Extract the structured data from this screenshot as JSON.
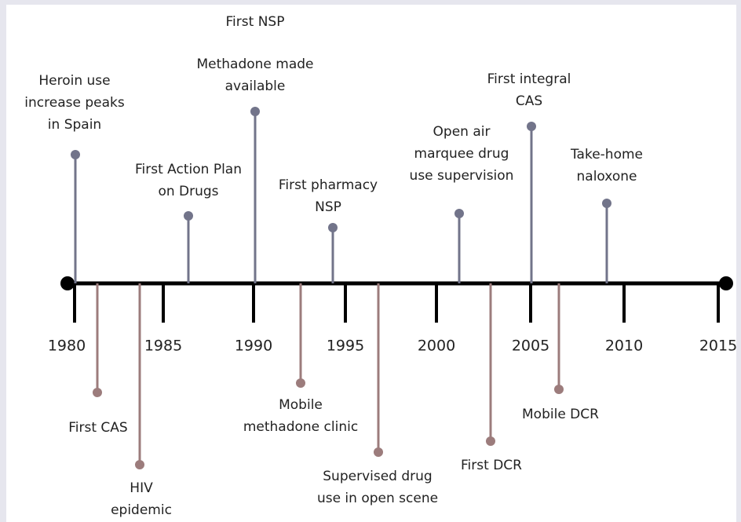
{
  "timeline": {
    "years": [
      "1980",
      "1985",
      "1990",
      "1995",
      "2000",
      "2005",
      "2010",
      "2015"
    ],
    "above": [
      {
        "label": [
          "Heroin use",
          "increase peaks",
          "in Spain"
        ]
      },
      {
        "label": [
          "First Action Plan",
          "on Drugs"
        ]
      },
      {
        "label": [
          "First NSP"
        ]
      },
      {
        "label": [
          "Methadone made",
          "available"
        ]
      },
      {
        "label": [
          "First pharmacy",
          "NSP"
        ]
      },
      {
        "label": [
          "Open air",
          "marquee drug",
          "use supervision"
        ]
      },
      {
        "label": [
          "First integral",
          "CAS"
        ]
      },
      {
        "label": [
          "Take-home",
          "naloxone"
        ]
      }
    ],
    "below": [
      {
        "label": [
          "First CAS"
        ]
      },
      {
        "label": [
          "HIV",
          "epidemic"
        ]
      },
      {
        "label": [
          "Mobile",
          "methadone clinic"
        ]
      },
      {
        "label": [
          "Supervised drug",
          "use in open scene"
        ]
      },
      {
        "label": [
          "First DCR"
        ]
      },
      {
        "label": [
          "Mobile DCR"
        ]
      }
    ]
  }
}
